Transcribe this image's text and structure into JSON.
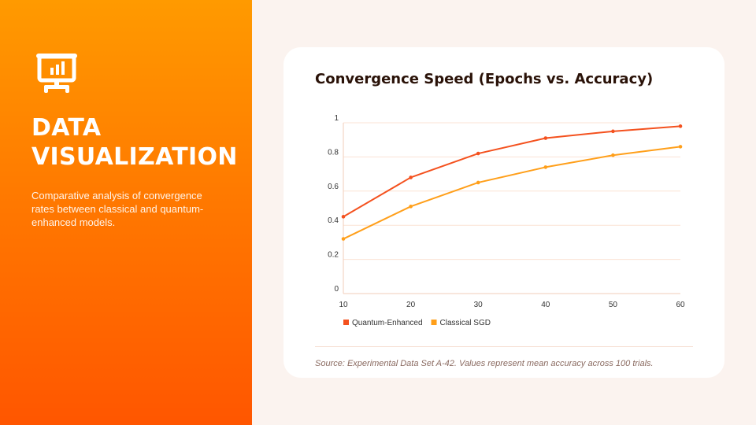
{
  "sidebar": {
    "icon": "presentation-chart-icon",
    "title_line1": "DATA",
    "title_line2": "VISUALIZATION",
    "description": "Comparative analysis of convergence rates between classical and quantum-enhanced models."
  },
  "colors": {
    "gradient_top": "#ff9a00",
    "gradient_bottom": "#ff5600",
    "series_quantum": "#f4511e",
    "series_classical": "#ff9f1a",
    "grid": "#fbe3d4"
  },
  "chart_data": {
    "type": "line",
    "title": "Convergence Speed (Epochs vs. Accuracy)",
    "xlabel": "",
    "ylabel": "",
    "x": [
      10,
      20,
      30,
      40,
      50,
      60
    ],
    "x_tick_labels": [
      "10",
      "20",
      "30",
      "40",
      "50",
      "60"
    ],
    "y_tick_labels": [
      "0",
      "0.2",
      "0.4",
      "0.6",
      "0.8",
      "1"
    ],
    "y_ticks": [
      0,
      0.2,
      0.4,
      0.6,
      0.8,
      1
    ],
    "xlim": [
      10,
      60
    ],
    "ylim": [
      0,
      1
    ],
    "grid": true,
    "legend_position": "bottom-left",
    "series": [
      {
        "name": "Quantum-Enhanced",
        "color": "#f4511e",
        "values": [
          0.45,
          0.68,
          0.82,
          0.91,
          0.95,
          0.98
        ]
      },
      {
        "name": "Classical SGD",
        "color": "#ff9f1a",
        "values": [
          0.32,
          0.51,
          0.65,
          0.74,
          0.81,
          0.86
        ]
      }
    ]
  },
  "footer": {
    "source": "Source: Experimental Data Set A-42. Values represent mean accuracy across 100 trials."
  }
}
